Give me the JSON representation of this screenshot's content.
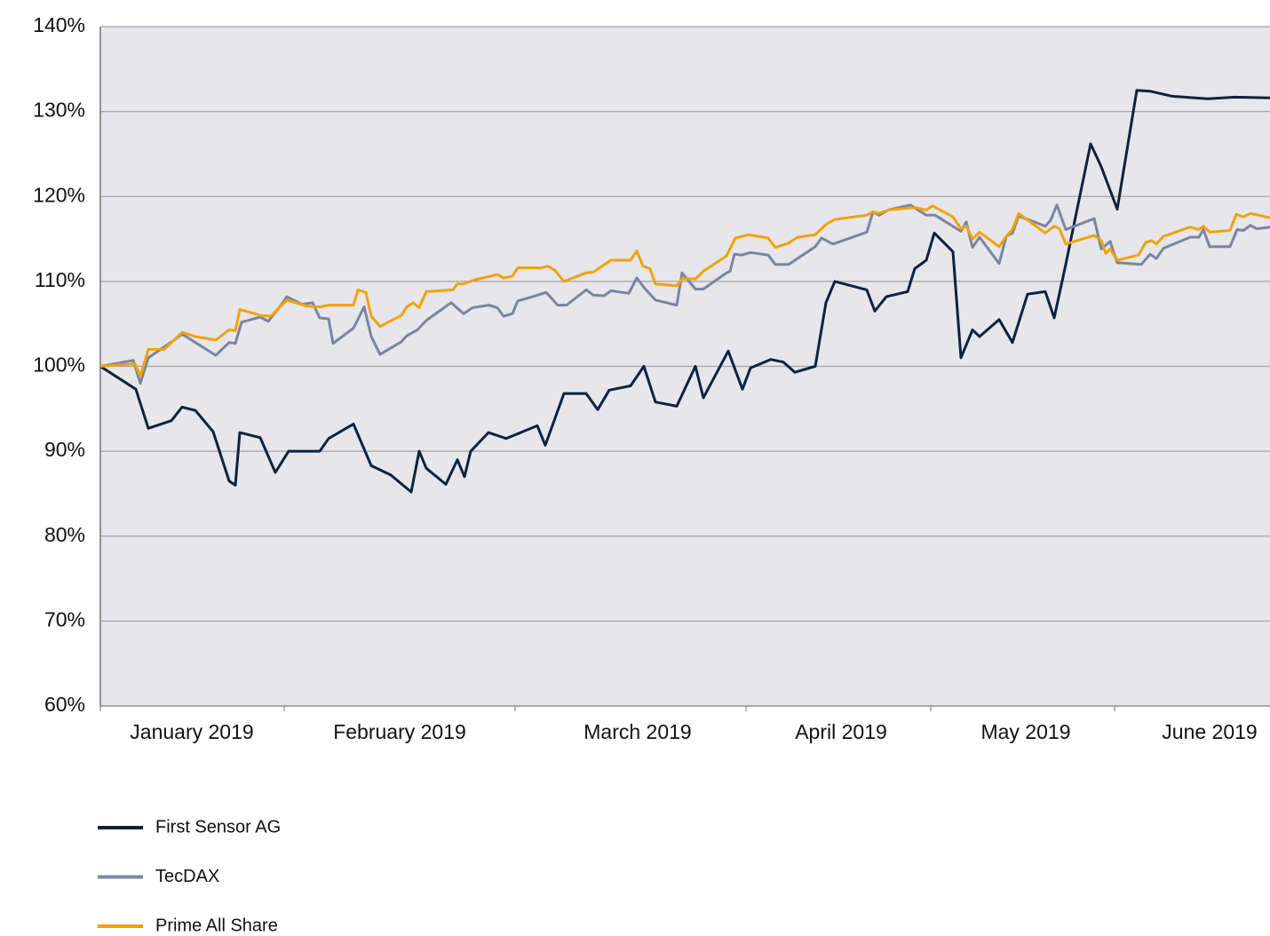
{
  "chart_data": {
    "type": "line",
    "xlim": [
      0,
      131.7
    ],
    "ylim": [
      60,
      140
    ],
    "yticks": [
      {
        "value": 60,
        "label": "60%"
      },
      {
        "value": 70,
        "label": "70%"
      },
      {
        "value": 80,
        "label": "80%"
      },
      {
        "value": 90,
        "label": "90%"
      },
      {
        "value": 100,
        "label": "100%"
      },
      {
        "value": 110,
        "label": "110%"
      },
      {
        "value": 120,
        "label": "120%"
      },
      {
        "value": 130,
        "label": "130%"
      },
      {
        "value": 140,
        "label": "140%"
      }
    ],
    "xtick_marks": [
      0,
      20.7,
      46.7,
      72.7,
      93.5,
      114.2
    ],
    "month_labels": [
      {
        "value": 10.3,
        "label": "January 2019"
      },
      {
        "value": 33.7,
        "label": "February 2019"
      },
      {
        "value": 60.5,
        "label": "March 2019"
      },
      {
        "value": 83.4,
        "label": "April 2019"
      },
      {
        "value": 104.2,
        "label": "May 2019"
      },
      {
        "value": 124.9,
        "label": "June 2019"
      }
    ],
    "grid": true,
    "series": [
      {
        "name": "First Sensor AG",
        "color": "#0e2240",
        "x": [
          0,
          4,
          5.4,
          8,
          9.2,
          10.7,
          12.7,
          14.5,
          15.2,
          15.7,
          18,
          19.7,
          21.2,
          24.7,
          25.7,
          28.5,
          30.5,
          32.7,
          35,
          35.9,
          36.7,
          38.9,
          40.2,
          41,
          41.7,
          43.7,
          45.7,
          49.2,
          50.1,
          52.2,
          54.7,
          56,
          57.3,
          59.7,
          61.2,
          62.5,
          64.9,
          67,
          67.9,
          70.7,
          72.3,
          73.2,
          75.5,
          76.9,
          78.2,
          80.5,
          81.7,
          82.7,
          86.3,
          87.2,
          88.5,
          90.9,
          91.7,
          93,
          93.9,
          96,
          96.9,
          98.2,
          99,
          101.2,
          102.7,
          104.4,
          106.4,
          107.4,
          108.7,
          111.5,
          112.7,
          114.5,
          116.7,
          118.2,
          120.7,
          124.7,
          127.7,
          131.7
        ],
        "values": [
          100,
          97.3,
          92.7,
          93.6,
          95.2,
          94.8,
          92.3,
          86.5,
          86,
          92.2,
          91.6,
          87.5,
          90,
          90,
          91.5,
          93.2,
          88.3,
          87.2,
          85.2,
          90,
          88,
          86.1,
          89,
          87,
          90,
          92.2,
          91.5,
          93,
          90.7,
          96.8,
          96.8,
          94.9,
          97.2,
          97.7,
          100,
          95.8,
          95.3,
          100,
          96.3,
          101.8,
          97.3,
          99.8,
          100.8,
          100.5,
          99.3,
          100,
          107.5,
          110,
          109,
          106.5,
          108.2,
          108.8,
          111.5,
          112.5,
          115.7,
          113.5,
          101,
          104.3,
          103.5,
          105.5,
          102.8,
          108.5,
          108.8,
          105.7,
          112,
          126.2,
          123.5,
          118.5,
          132.5,
          132.4,
          131.8,
          131.5,
          131.7,
          131.6
        ]
      },
      {
        "name": "TecDAX",
        "color": "#7a869f",
        "x": [
          0,
          3.7,
          4.5,
          5.4,
          8.2,
          9.2,
          10.7,
          13,
          14.5,
          15.2,
          15.9,
          18,
          18.9,
          20.2,
          21,
          22.7,
          23.9,
          24.7,
          25.7,
          26.2,
          28.5,
          29.7,
          30.5,
          31.5,
          33.9,
          34.5,
          35.7,
          36.7,
          39.5,
          40.9,
          41.9,
          43.7,
          44.7,
          45.4,
          46.4,
          47,
          49,
          50.2,
          51.5,
          52.5,
          54.7,
          55.5,
          56.7,
          57.5,
          59.5,
          60.4,
          61.2,
          62.5,
          64.9,
          65.5,
          67,
          67.9,
          70.5,
          70.9,
          71.4,
          72.2,
          73.2,
          75.2,
          76,
          77.5,
          78.5,
          80.5,
          81.2,
          82.5,
          86.3,
          87,
          87.7,
          88.7,
          91.2,
          93,
          94,
          96.9,
          97.5,
          98.2,
          99,
          101.2,
          102,
          102.7,
          103.4,
          106.4,
          107,
          107.7,
          108.7,
          111.9,
          112.7,
          113.7,
          114.5,
          117.2,
          118.2,
          118.9,
          119.7,
          122.7,
          123.7,
          124.2,
          124.9,
          127.2,
          128,
          128.7,
          129.5,
          130.2,
          131.7
        ],
        "values": [
          100,
          100.7,
          98,
          101,
          103,
          103.8,
          102.8,
          101.3,
          102.8,
          102.7,
          105.2,
          105.8,
          105.3,
          107,
          108.2,
          107.3,
          107.5,
          105.7,
          105.6,
          102.7,
          104.5,
          107,
          103.5,
          101.4,
          102.9,
          103.6,
          104.3,
          105.4,
          107.5,
          106.2,
          106.9,
          107.2,
          106.9,
          105.9,
          106.2,
          107.7,
          108.3,
          108.7,
          107.2,
          107.2,
          109,
          108.4,
          108.3,
          108.9,
          108.6,
          110.4,
          109.3,
          107.8,
          107.2,
          111,
          109.1,
          109.1,
          111,
          111.2,
          113.2,
          113.1,
          113.4,
          113.1,
          112,
          112,
          112.7,
          114.1,
          115.1,
          114.4,
          115.8,
          118.2,
          117.8,
          118.4,
          119,
          117.8,
          117.8,
          115.9,
          117,
          114,
          115.2,
          112.1,
          115.3,
          115.7,
          117.7,
          116.5,
          117.2,
          119,
          116.1,
          117.4,
          113.8,
          114.7,
          112.2,
          112,
          113.2,
          112.7,
          113.9,
          115.2,
          115.2,
          116.1,
          114.1,
          114.1,
          116.1,
          116,
          116.6,
          116.2,
          116.4
        ]
      },
      {
        "name": "Prime All Share",
        "color": "#f0a30a",
        "x": [
          0,
          3.9,
          4.5,
          5.4,
          7.2,
          9.2,
          10.7,
          13,
          14.5,
          15.2,
          15.7,
          18,
          19.2,
          21,
          23.2,
          24.7,
          25.7,
          28.5,
          29,
          29.9,
          30.5,
          31.5,
          33.9,
          34.5,
          35.2,
          35.9,
          36.7,
          39.7,
          40.2,
          40.9,
          42.2,
          44.7,
          45.4,
          46.4,
          47,
          49.7,
          50.4,
          51.2,
          52.2,
          54.7,
          55.5,
          57.5,
          59.7,
          60.4,
          61.1,
          61.9,
          62.5,
          64.9,
          65.5,
          67,
          67.9,
          70.5,
          71.5,
          73,
          75.2,
          76,
          77.5,
          78.5,
          80.5,
          81.7,
          82.7,
          86.3,
          87,
          87.7,
          88.7,
          91.7,
          93,
          93.7,
          96,
          96.9,
          97.5,
          98.2,
          99,
          101.2,
          102,
          102.7,
          103.4,
          106.4,
          107.4,
          108,
          108.7,
          111.9,
          112.7,
          113.2,
          113.7,
          114.5,
          116.9,
          117.7,
          118.4,
          118.9,
          119.7,
          122.7,
          123.7,
          124.2,
          124.9,
          127.2,
          127.9,
          128.7,
          129.5,
          131.7
        ],
        "values": [
          100,
          100.3,
          98.8,
          102,
          102,
          104,
          103.5,
          103.1,
          104.3,
          104.2,
          106.7,
          106,
          105.9,
          107.8,
          107.1,
          107,
          107.2,
          107.2,
          109,
          108.7,
          105.9,
          104.7,
          106,
          107,
          107.5,
          106.9,
          108.8,
          109,
          109.7,
          109.7,
          110.2,
          110.8,
          110.4,
          110.6,
          111.6,
          111.6,
          111.8,
          111.3,
          110,
          111,
          111.1,
          112.5,
          112.5,
          113.6,
          111.8,
          111.5,
          109.7,
          109.5,
          110.3,
          110.3,
          111.2,
          113,
          115.1,
          115.5,
          115.1,
          114,
          114.5,
          115.2,
          115.5,
          116.7,
          117.3,
          117.8,
          118.2,
          118,
          118.4,
          118.7,
          118.4,
          118.9,
          117.6,
          116.2,
          116.5,
          115,
          115.8,
          114.1,
          115.3,
          116.1,
          118,
          115.7,
          116.5,
          116.2,
          114.4,
          115.4,
          114.8,
          113.3,
          113.8,
          112.5,
          113.1,
          114.6,
          114.8,
          114.4,
          115.3,
          116.4,
          116.1,
          116.5,
          115.8,
          116,
          117.9,
          117.6,
          118,
          117.5
        ]
      }
    ]
  }
}
